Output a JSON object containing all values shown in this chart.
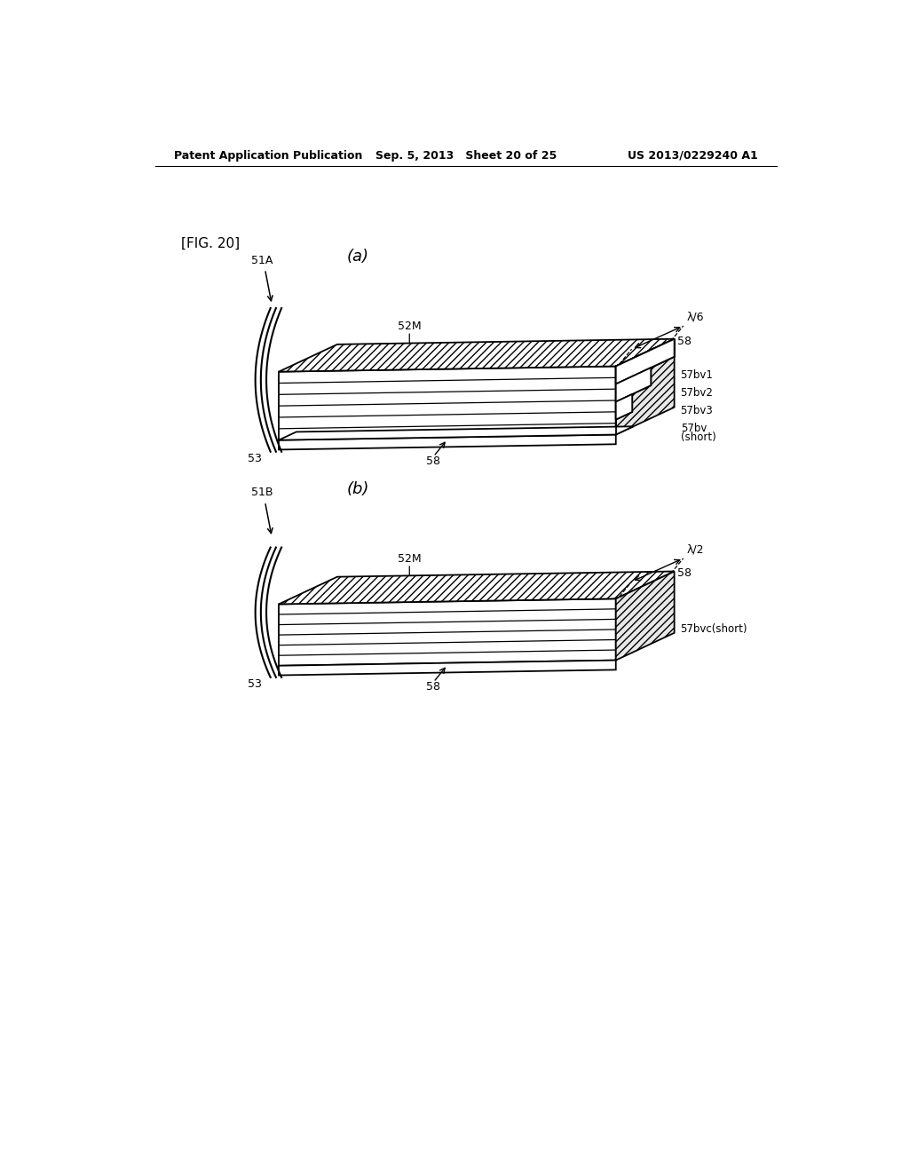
{
  "bg_color": "#ffffff",
  "header_left": "Patent Application Publication",
  "header_mid": "Sep. 5, 2013   Sheet 20 of 25",
  "header_right": "US 2013/0229240 A1",
  "fig_label": "[FIG. 20]",
  "fig_a_label": "(a)",
  "fig_b_label": "(b)",
  "label_51A": "51A",
  "label_51B": "51B",
  "label_52M_a": "52M",
  "label_52M_b": "52M",
  "label_53_a": "53",
  "label_53_b": "53",
  "label_58_a_top": "58",
  "label_58_a_bot": "58",
  "label_58_b_top": "58",
  "label_58_b_bot": "58",
  "label_57bv1": "57bv1",
  "label_57bv2": "57bv2",
  "label_57bv3": "57bv3",
  "label_57bv": "57bv",
  "label_57bv_short": "(short)",
  "label_57bvc": "57bvc(short)",
  "label_lambda6": "λ/6",
  "label_lambda2": "λ/2",
  "line_color": "#000000"
}
